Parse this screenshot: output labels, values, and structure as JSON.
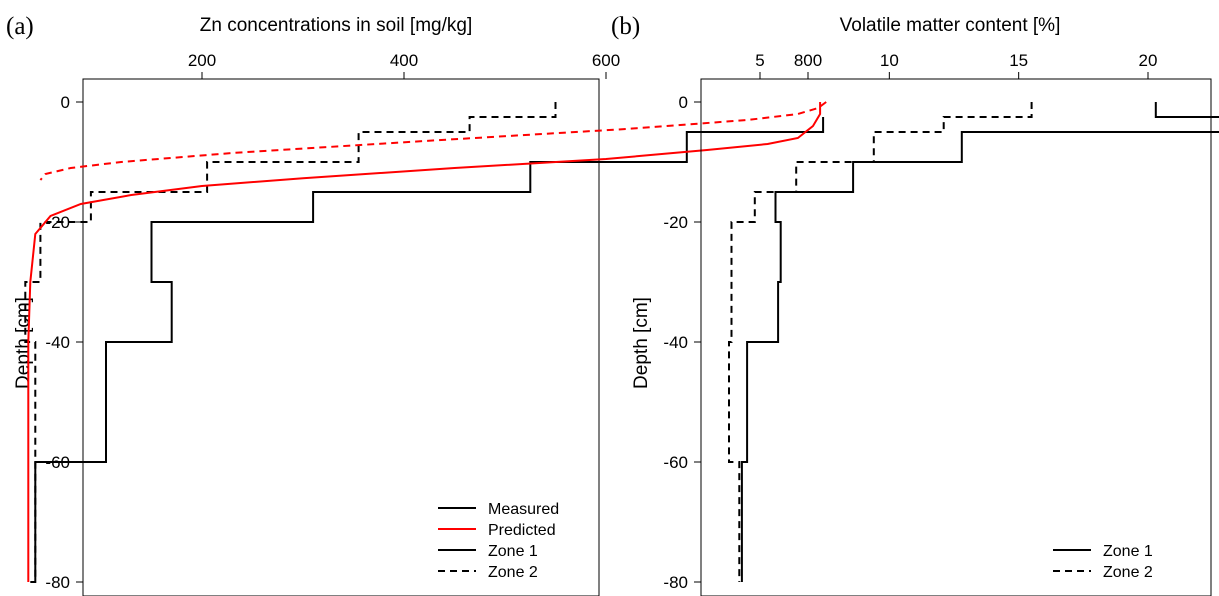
{
  "chart_data": [
    {
      "panel": "(a)",
      "type": "line",
      "title": "",
      "xlabel": "Zn concentrations in soil [mg/kg]",
      "ylabel": "Depth [cm]",
      "xaxis_position": "top",
      "xlim": [
        0,
        820
      ],
      "ylim": [
        -80,
        0
      ],
      "xticks": [
        200,
        400,
        600,
        800
      ],
      "yticks": [
        0,
        -20,
        -40,
        -60,
        -80
      ],
      "grid": false,
      "legend": {
        "position": "bottom-right",
        "entries": [
          {
            "label": "Measured",
            "color": "#000000",
            "dash": "solid"
          },
          {
            "label": "Predicted",
            "color": "#ff0000",
            "dash": "solid"
          },
          {
            "label": "Zone 1",
            "color": "#000000",
            "dash": "solid"
          },
          {
            "label": "Zone 2",
            "color": "#000000",
            "dash": "dashed"
          }
        ]
      },
      "series": [
        {
          "kind": "Measured",
          "zone": "Zone 1",
          "style": "step",
          "color": "#000000",
          "dash": "solid",
          "x": [
            815,
            680,
            525,
            310,
            150,
            170,
            105,
            35,
            30
          ],
          "y_top": [
            -2.5,
            -5,
            -10,
            -15,
            -20,
            -30,
            -40,
            -60,
            -80
          ],
          "y_bottom": [
            -5,
            -10,
            -15,
            -20,
            -30,
            -40,
            -60,
            -80,
            -80
          ]
        },
        {
          "kind": "Measured",
          "zone": "Zone 2",
          "style": "step",
          "color": "#000000",
          "dash": "dashed",
          "x": [
            550,
            465,
            355,
            205,
            90,
            40,
            25,
            35
          ],
          "y_top": [
            0,
            -2.5,
            -5,
            -10,
            -15,
            -20,
            -30,
            -40
          ],
          "y_bottom": [
            -2.5,
            -5,
            -10,
            -15,
            -20,
            -30,
            -40,
            -80
          ]
        },
        {
          "kind": "Predicted",
          "zone": "Zone 1",
          "style": "curve",
          "color": "#ff0000",
          "dash": "solid",
          "x": [
            812,
            812,
            805,
            790,
            760,
            700,
            600,
            450,
            300,
            200,
            130,
            80,
            50,
            35,
            30,
            28,
            28,
            28
          ],
          "y": [
            0,
            -2,
            -4,
            -6,
            -7,
            -8,
            -9.5,
            -11,
            -12.7,
            -14,
            -15.5,
            -17,
            -19,
            -22,
            -30,
            -40,
            -60,
            -80
          ]
        },
        {
          "kind": "Predicted",
          "zone": "Zone 2",
          "style": "curve",
          "color": "#ff0000",
          "dash": "dashed",
          "x": [
            818,
            810,
            790,
            740,
            620,
            420,
            230,
            120,
            70,
            45,
            40
          ],
          "y": [
            0,
            -1,
            -2,
            -3,
            -4.5,
            -6.5,
            -8.5,
            -10,
            -11,
            -12,
            -13
          ]
        }
      ]
    },
    {
      "panel": "(b)",
      "type": "line",
      "title": "",
      "xlabel": "Volatile matter content [%]",
      "ylabel": "Depth [cm]",
      "xaxis_position": "top",
      "xlim": [
        2.5,
        23
      ],
      "ylim": [
        -80,
        0
      ],
      "xticks": [
        5,
        10,
        15,
        20
      ],
      "yticks": [
        0,
        -20,
        -40,
        -60,
        -80
      ],
      "grid": false,
      "legend": {
        "position": "bottom-right",
        "entries": [
          {
            "label": "Zone 1",
            "color": "#000000",
            "dash": "solid"
          },
          {
            "label": "Zone 2",
            "color": "#000000",
            "dash": "dashed"
          }
        ]
      },
      "series": [
        {
          "zone": "Zone 1",
          "style": "step",
          "color": "#000000",
          "dash": "solid",
          "x": [
            20.3,
            23.1,
            12.8,
            8.6,
            5.6,
            5.8,
            5.7,
            4.5,
            4.3
          ],
          "y_top": [
            0,
            -2.5,
            -5,
            -10,
            -15,
            -20,
            -30,
            -40,
            -60
          ],
          "y_bottom": [
            -2.5,
            -5,
            -10,
            -15,
            -20,
            -30,
            -40,
            -60,
            -80
          ]
        },
        {
          "zone": "Zone 2",
          "style": "step",
          "color": "#000000",
          "dash": "dashed",
          "x": [
            15.5,
            12.1,
            9.4,
            6.4,
            4.8,
            3.9,
            3.8,
            4.2
          ],
          "y_top": [
            0,
            -2.5,
            -5,
            -10,
            -15,
            -20,
            -40,
            -60
          ],
          "y_bottom": [
            -2.5,
            -5,
            -10,
            -15,
            -20,
            -40,
            -60,
            -80
          ]
        }
      ]
    }
  ]
}
